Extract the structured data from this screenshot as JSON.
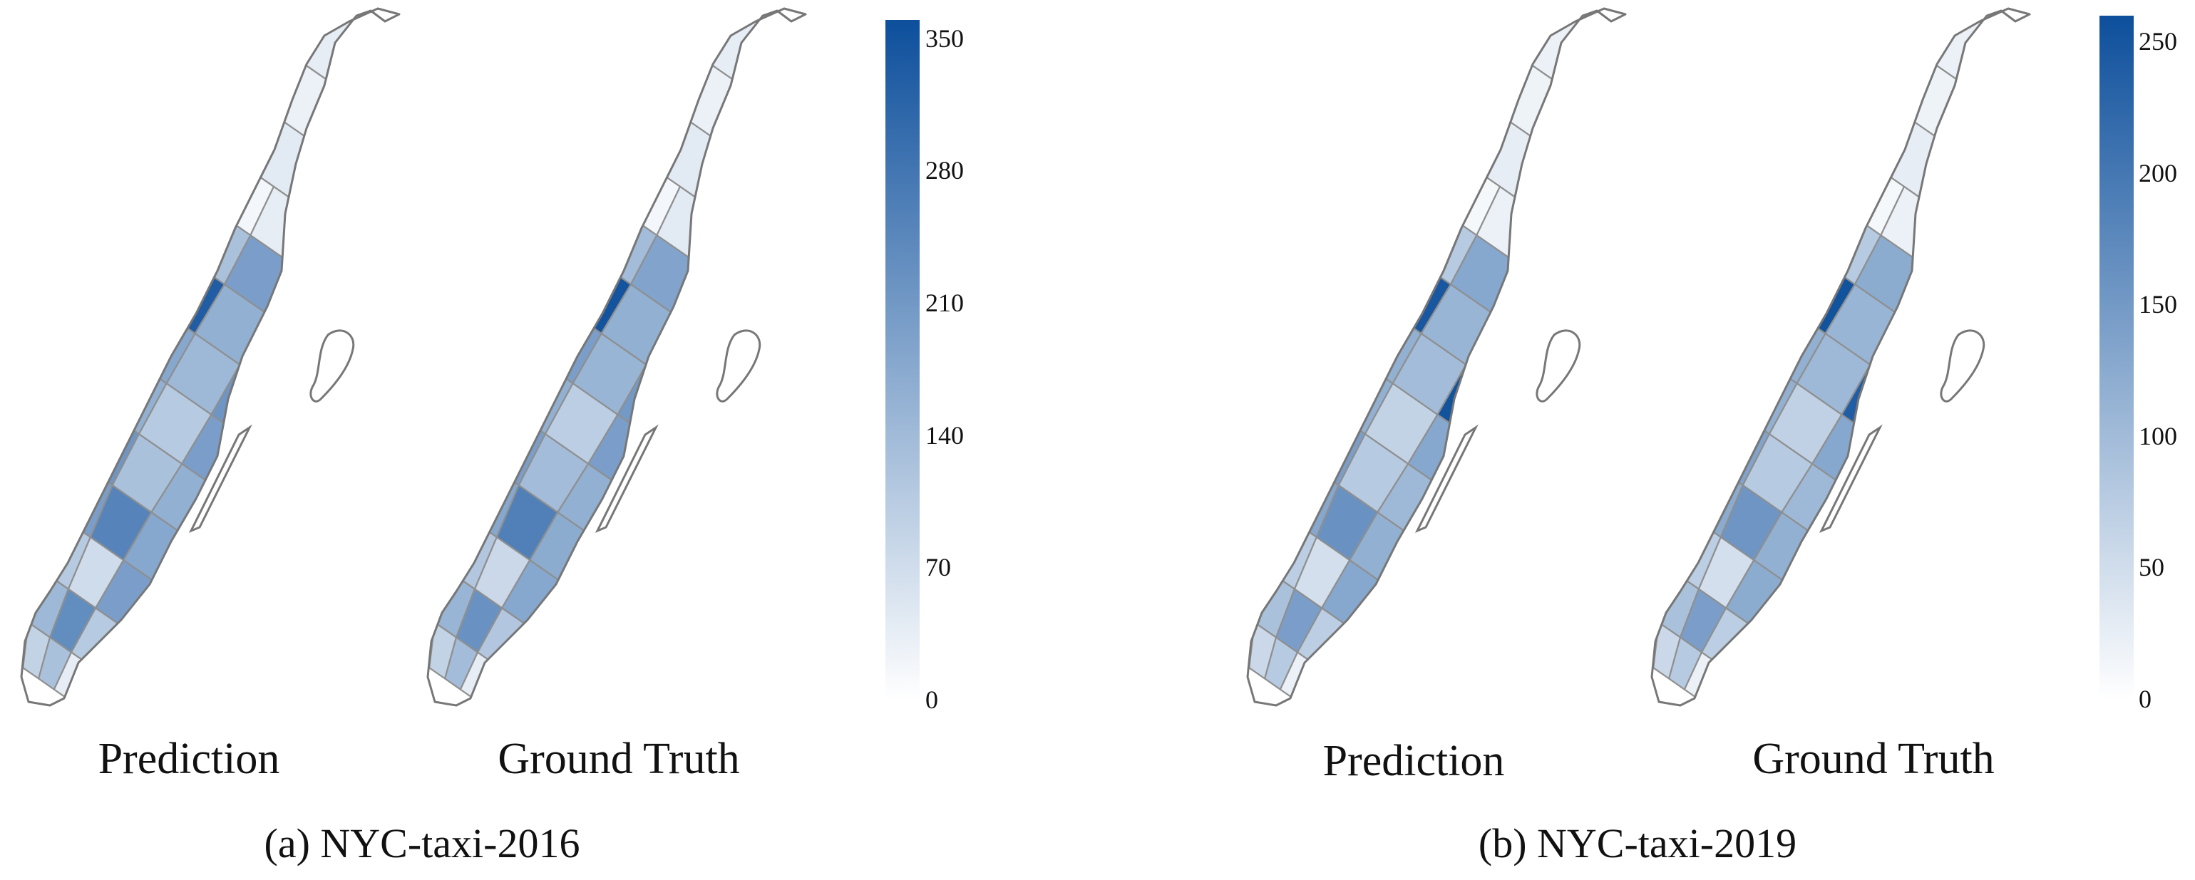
{
  "panels": [
    {
      "caption": "(a) NYC-taxi-2016",
      "colorbar": {
        "min": 0,
        "max": 360,
        "ticks": [
          "0",
          "70",
          "140",
          "210",
          "280",
          "350"
        ],
        "tick_values": [
          0,
          70,
          140,
          210,
          280,
          350
        ],
        "color_low": "#ffffff",
        "color_high": "#0d4f9c"
      },
      "maps": [
        {
          "label": "Prediction",
          "intensity": [
            0.1,
            0.05,
            0.08,
            0.06,
            0.12,
            0.1,
            0.05,
            0.1,
            0.62,
            0.35,
            0.55,
            0.95,
            0.92,
            0.45,
            0.55,
            0.5,
            0.4,
            0.6,
            0.45,
            0.3,
            0.55,
            0.6,
            0.35,
            0.45,
            0.55,
            0.7,
            0.5,
            0.3,
            0.2,
            0.55,
            0.4,
            0.65,
            0.3,
            0.25,
            0.35,
            0.1,
            0.2,
            0.45,
            0.25,
            0.15
          ]
        },
        {
          "label": "Ground Truth",
          "intensity": [
            0.1,
            0.05,
            0.08,
            0.06,
            0.12,
            0.12,
            0.05,
            0.12,
            0.68,
            0.38,
            0.52,
            0.88,
            0.97,
            0.45,
            0.5,
            0.55,
            0.42,
            0.58,
            0.45,
            0.28,
            0.55,
            0.55,
            0.38,
            0.45,
            0.5,
            0.72,
            0.48,
            0.32,
            0.22,
            0.5,
            0.42,
            0.62,
            0.32,
            0.25,
            0.38,
            0.1,
            0.22,
            0.4,
            0.25,
            0.15
          ]
        }
      ]
    },
    {
      "caption": "(b) NYC-taxi-2019",
      "colorbar": {
        "min": 0,
        "max": 260,
        "ticks": [
          "0",
          "50",
          "100",
          "150",
          "200",
          "250"
        ],
        "tick_values": [
          0,
          50,
          100,
          150,
          200,
          250
        ],
        "color_low": "#ffffff",
        "color_high": "#0d4f9c"
      },
      "maps": [
        {
          "label": "Prediction",
          "intensity": [
            0.08,
            0.04,
            0.07,
            0.05,
            0.1,
            0.1,
            0.04,
            0.08,
            0.55,
            0.3,
            0.5,
            0.85,
            0.95,
            0.42,
            0.5,
            0.45,
            0.38,
            0.98,
            0.45,
            0.25,
            0.5,
            0.55,
            0.3,
            0.4,
            0.5,
            0.62,
            0.45,
            0.28,
            0.18,
            0.5,
            0.35,
            0.55,
            0.28,
            0.22,
            0.3,
            0.08,
            0.18,
            0.4,
            0.22,
            0.12
          ]
        },
        {
          "label": "Ground Truth",
          "intensity": [
            0.08,
            0.04,
            0.07,
            0.05,
            0.1,
            0.1,
            0.04,
            0.08,
            0.58,
            0.3,
            0.48,
            0.8,
            0.98,
            0.42,
            0.48,
            0.45,
            0.4,
            0.92,
            0.45,
            0.26,
            0.5,
            0.52,
            0.3,
            0.4,
            0.48,
            0.6,
            0.45,
            0.28,
            0.18,
            0.48,
            0.35,
            0.55,
            0.28,
            0.22,
            0.3,
            0.08,
            0.18,
            0.38,
            0.22,
            0.12
          ]
        }
      ]
    }
  ]
}
